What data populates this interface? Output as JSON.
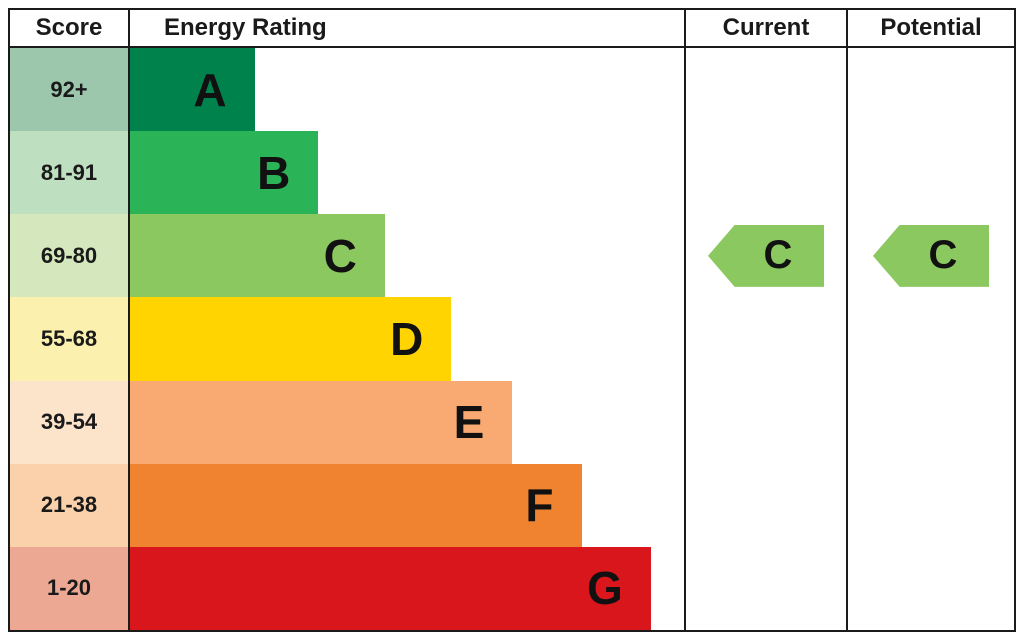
{
  "header": {
    "score": "Score",
    "energy_rating": "Energy Rating",
    "current": "Current",
    "potential": "Potential"
  },
  "chart_data": {
    "type": "bar",
    "title": "Energy Rating (EPC)",
    "orientation": "horizontal",
    "categories": [
      "92+",
      "81-91",
      "69-80",
      "55-68",
      "39-54",
      "21-38",
      "1-20"
    ],
    "letters": [
      "A",
      "B",
      "C",
      "D",
      "E",
      "F",
      "G"
    ],
    "bands": [
      {
        "score": "92+",
        "letter": "A",
        "color": "#00824c",
        "tint": "#9cc7ad",
        "width_pct": 22.5
      },
      {
        "score": "81-91",
        "letter": "B",
        "color": "#2bb357",
        "tint": "#bfe0c0",
        "width_pct": 34
      },
      {
        "score": "69-80",
        "letter": "C",
        "color": "#8cc860",
        "tint": "#d5e7bc",
        "width_pct": 46
      },
      {
        "score": "55-68",
        "letter": "D",
        "color": "#ffd401",
        "tint": "#fcf0ae",
        "width_pct": 58
      },
      {
        "score": "39-54",
        "letter": "E",
        "color": "#f9aa72",
        "tint": "#fce4ca",
        "width_pct": 69
      },
      {
        "score": "21-38",
        "letter": "F",
        "color": "#ef8330",
        "tint": "#fad1ab",
        "width_pct": 81.5
      },
      {
        "score": "1-20",
        "letter": "G",
        "color": "#d9161c",
        "tint": "#eda893",
        "width_pct": 94
      }
    ],
    "current": {
      "letter": "C",
      "band": "69-80",
      "band_index": 2,
      "color": "#8cc860"
    },
    "potential": {
      "letter": "C",
      "band": "69-80",
      "band_index": 2,
      "color": "#8cc860"
    }
  }
}
